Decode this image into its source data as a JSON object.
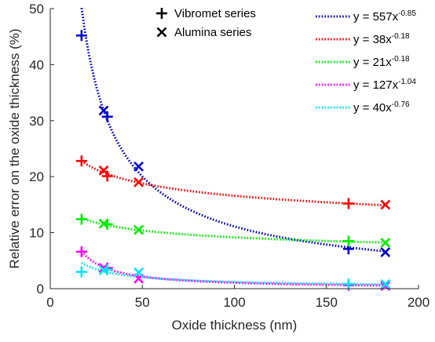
{
  "chart_data": {
    "type": "scatter",
    "xlabel": "Oxide thickness (nm)",
    "ylabel": "Relative error on the oxide thickness (%)",
    "xlim": [
      0,
      200
    ],
    "ylim": [
      0,
      50
    ],
    "xticks": [
      "0",
      "50",
      "100",
      "150",
      "200"
    ],
    "yticks": [
      "0",
      "10",
      "20",
      "30",
      "40",
      "50"
    ],
    "grid": false,
    "marker_legend": {
      "placement": "top-center",
      "entries": [
        {
          "marker": "plus",
          "label": "Vibromet series"
        },
        {
          "marker": "cross",
          "label": "Alumina series"
        }
      ]
    },
    "fit_legend": {
      "placement": "top-right",
      "entries": [
        {
          "label_base": "y = 557x",
          "label_exp": "-0.85",
          "color": "#0000cc"
        },
        {
          "label_base": "y = 38x",
          "label_exp": "-0.18",
          "color": "#ff0000"
        },
        {
          "label_base": "y = 21x",
          "label_exp": "-0.18",
          "color": "#00ee00"
        },
        {
          "label_base": "y = 127x",
          "label_exp": "-1.04",
          "color": "#ff00ff"
        },
        {
          "label_base": "y = 40x",
          "label_exp": "-0.76",
          "color": "#00e5ee"
        }
      ]
    },
    "series": [
      {
        "color": "#0000cc",
        "fit": {
          "a": 557,
          "b": -0.85,
          "x_range": [
            17,
            182
          ]
        },
        "vibromet": [
          [
            17,
            45.2
          ],
          [
            31,
            30.7
          ],
          [
            162,
            7.1
          ]
        ],
        "alumina": [
          [
            29,
            31.8
          ],
          [
            48,
            21.8
          ],
          [
            182,
            6.5
          ]
        ]
      },
      {
        "color": "#ff0000",
        "fit": {
          "a": 38,
          "b": -0.18,
          "x_range": [
            17,
            182
          ]
        },
        "vibromet": [
          [
            17,
            22.8
          ],
          [
            31,
            20.1
          ],
          [
            162,
            15.2
          ]
        ],
        "alumina": [
          [
            29,
            21.1
          ],
          [
            48,
            19.0
          ],
          [
            182,
            15.0
          ]
        ]
      },
      {
        "color": "#00ee00",
        "fit": {
          "a": 21,
          "b": -0.18,
          "x_range": [
            17,
            182
          ]
        },
        "vibromet": [
          [
            17,
            12.4
          ],
          [
            31,
            11.5
          ],
          [
            162,
            8.5
          ]
        ],
        "alumina": [
          [
            29,
            11.6
          ],
          [
            48,
            10.5
          ],
          [
            182,
            8.2
          ]
        ]
      },
      {
        "color": "#ff00ff",
        "fit": {
          "a": 127,
          "b": -1.04,
          "x_range": [
            17,
            182
          ]
        },
        "vibromet": [
          [
            17,
            6.6
          ],
          [
            31,
            3.7
          ],
          [
            162,
            0.6
          ]
        ],
        "alumina": [
          [
            29,
            3.7
          ],
          [
            48,
            1.8
          ],
          [
            182,
            0.5
          ]
        ]
      },
      {
        "color": "#00e5ee",
        "fit": {
          "a": 40,
          "b": -0.76,
          "x_range": [
            17,
            182
          ]
        },
        "vibromet": [
          [
            17,
            3.0
          ],
          [
            31,
            3.4
          ],
          [
            162,
            0.8
          ]
        ],
        "alumina": [
          [
            29,
            3.3
          ],
          [
            48,
            2.9
          ],
          [
            182,
            0.8
          ]
        ]
      }
    ]
  }
}
